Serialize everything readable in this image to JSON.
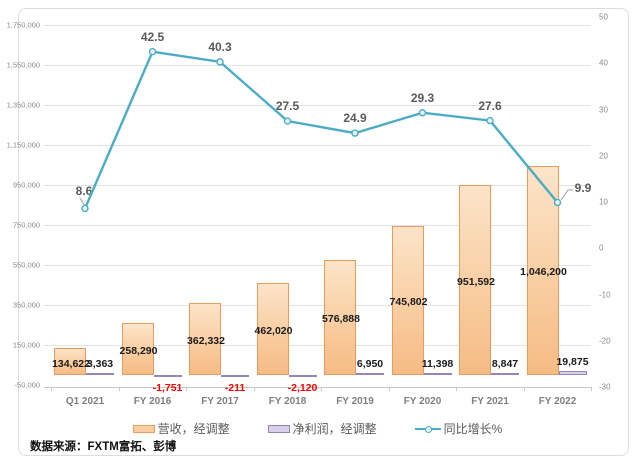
{
  "source_note": "数据来源：FXTM富拓、彭博",
  "colors": {
    "revenue_fill": "#f8c897",
    "revenue_border": "#e89b5e",
    "net_fill": "#d8d0e8",
    "net_border": "#9585bd",
    "line": "#4bacc6",
    "negative_label": "#ff0000",
    "gridline": "#e3e3e3"
  },
  "chart_data": {
    "type": "combo-bar-line",
    "categories": [
      "Q1 2021",
      "FY 2016",
      "FY 2017",
      "FY 2018",
      "FY 2019",
      "FY 2020",
      "FY 2021",
      "FY 2022"
    ],
    "series": [
      {
        "name": "营收，经调整",
        "type": "bar",
        "axis": "left",
        "values": [
          134622,
          258290,
          362332,
          462020,
          576888,
          745802,
          951592,
          1046200
        ],
        "labels": [
          "134,622",
          "258,290",
          "362,332",
          "462,020",
          "576,888",
          "745,802",
          "951,592",
          "1,046,200"
        ]
      },
      {
        "name": "净利润，经调整",
        "type": "bar",
        "axis": "left",
        "values": [
          3363,
          -1751,
          -211,
          -2120,
          6950,
          11398,
          8847,
          19875
        ],
        "labels": [
          "3,363",
          "-1,751",
          "-211",
          "-2,120",
          "6,950",
          "11,398",
          "8,847",
          "19,875"
        ]
      },
      {
        "name": "同比增长%",
        "type": "line",
        "axis": "right",
        "values": [
          8.6,
          42.5,
          40.3,
          27.5,
          24.9,
          29.3,
          27.6,
          9.9
        ],
        "labels": [
          "8.6",
          "42.5",
          "40.3",
          "27.5",
          "24.9",
          "29.3",
          "27.6",
          "9.9"
        ]
      }
    ],
    "left_axis": {
      "min": -50000,
      "max": 1750000,
      "step": 200000,
      "tick_labels": [
        "1,750,000",
        "1,550,000",
        "1,350,000",
        "1,150,000",
        "950,000",
        "750,000",
        "550,000",
        "350,000",
        "150,000",
        "-50,000"
      ]
    },
    "right_axis": {
      "min": -30,
      "max": 50,
      "step": 10,
      "tick_labels": [
        "50",
        "40",
        "30",
        "20",
        "10",
        "0",
        "-10",
        "-20",
        "-30"
      ]
    },
    "legend_position": "bottom",
    "grid": true
  }
}
